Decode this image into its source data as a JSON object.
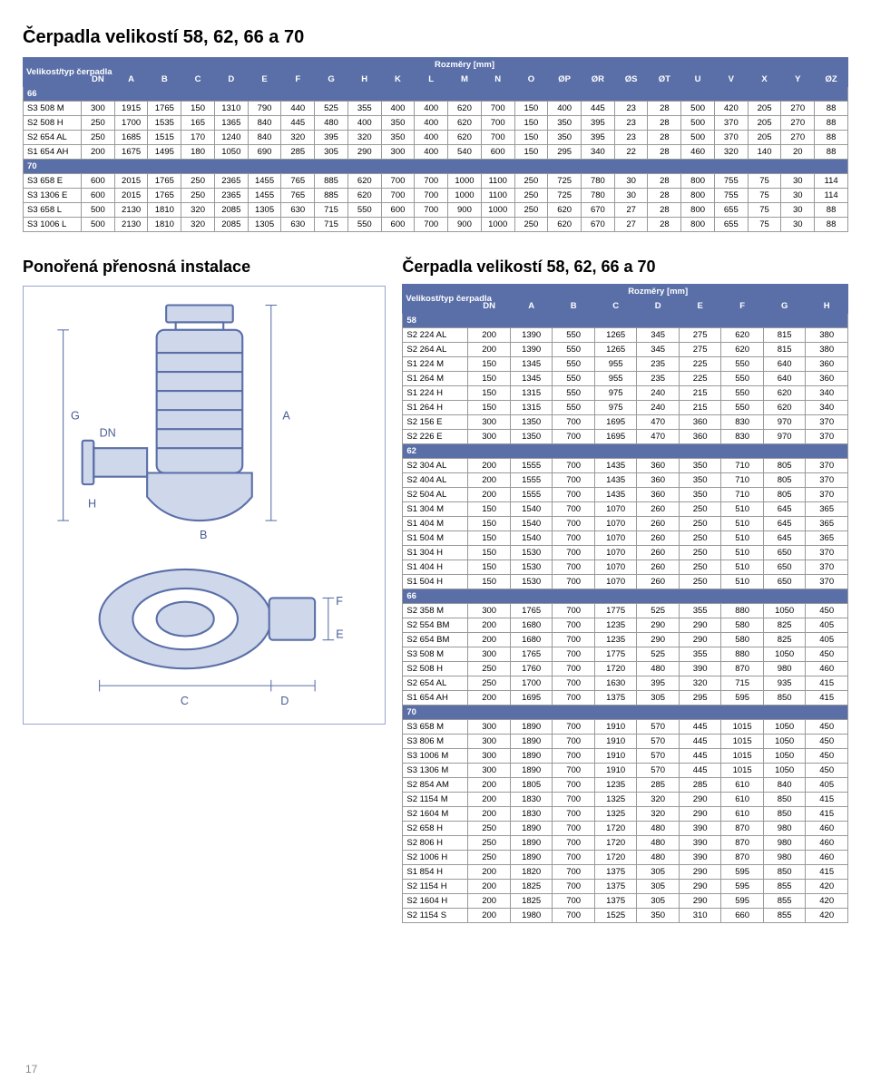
{
  "page_number": "17",
  "title_top": "Čerpadla velikostí 58, 62, 66 a 70",
  "table1": {
    "header_group_left": "Velikost/typ čerpadla",
    "header_group_right": "Rozměry [mm]",
    "cols": [
      "DN",
      "A",
      "B",
      "C",
      "D",
      "E",
      "F",
      "G",
      "H",
      "K",
      "L",
      "M",
      "N",
      "O",
      "ØP",
      "ØR",
      "ØS",
      "ØT",
      "U",
      "V",
      "X",
      "Y",
      "ØZ"
    ],
    "sections": [
      {
        "label": "66",
        "rows": [
          [
            "S3 508 M",
            "300",
            "1915",
            "1765",
            "150",
            "1310",
            "790",
            "440",
            "525",
            "355",
            "400",
            "400",
            "620",
            "700",
            "150",
            "400",
            "445",
            "23",
            "28",
            "500",
            "420",
            "205",
            "270",
            "88"
          ],
          [
            "S2 508 H",
            "250",
            "1700",
            "1535",
            "165",
            "1365",
            "840",
            "445",
            "480",
            "400",
            "350",
            "400",
            "620",
            "700",
            "150",
            "350",
            "395",
            "23",
            "28",
            "500",
            "370",
            "205",
            "270",
            "88"
          ],
          [
            "S2 654 AL",
            "250",
            "1685",
            "1515",
            "170",
            "1240",
            "840",
            "320",
            "395",
            "320",
            "350",
            "400",
            "620",
            "700",
            "150",
            "350",
            "395",
            "23",
            "28",
            "500",
            "370",
            "205",
            "270",
            "88"
          ],
          [
            "S1 654 AH",
            "200",
            "1675",
            "1495",
            "180",
            "1050",
            "690",
            "285",
            "305",
            "290",
            "300",
            "400",
            "540",
            "600",
            "150",
            "295",
            "340",
            "22",
            "28",
            "460",
            "320",
            "140",
            "20",
            "88"
          ]
        ]
      },
      {
        "label": "70",
        "rows": [
          [
            "S3 658 E",
            "600",
            "2015",
            "1765",
            "250",
            "2365",
            "1455",
            "765",
            "885",
            "620",
            "700",
            "700",
            "1000",
            "1100",
            "250",
            "725",
            "780",
            "30",
            "28",
            "800",
            "755",
            "75",
            "30",
            "114"
          ],
          [
            "S3 1306 E",
            "600",
            "2015",
            "1765",
            "250",
            "2365",
            "1455",
            "765",
            "885",
            "620",
            "700",
            "700",
            "1000",
            "1100",
            "250",
            "725",
            "780",
            "30",
            "28",
            "800",
            "755",
            "75",
            "30",
            "114"
          ],
          [
            "S3 658 L",
            "500",
            "2130",
            "1810",
            "320",
            "2085",
            "1305",
            "630",
            "715",
            "550",
            "600",
            "700",
            "900",
            "1000",
            "250",
            "620",
            "670",
            "27",
            "28",
            "800",
            "655",
            "75",
            "30",
            "88"
          ],
          [
            "S3 1006 L",
            "500",
            "2130",
            "1810",
            "320",
            "2085",
            "1305",
            "630",
            "715",
            "550",
            "600",
            "700",
            "900",
            "1000",
            "250",
            "620",
            "670",
            "27",
            "28",
            "800",
            "655",
            "75",
            "30",
            "88"
          ]
        ]
      }
    ]
  },
  "subtitle_left": "Ponořená přenosná instalace",
  "subtitle_right": "Čerpadla velikostí 58, 62, 66 a 70",
  "table2": {
    "header_group_left": "Velikost/typ čerpadla",
    "header_group_right": "Rozměry [mm]",
    "cols": [
      "DN",
      "A",
      "B",
      "C",
      "D",
      "E",
      "F",
      "G",
      "H"
    ],
    "sections": [
      {
        "label": "58",
        "rows": [
          [
            "S2 224 AL",
            "200",
            "1390",
            "550",
            "1265",
            "345",
            "275",
            "620",
            "815",
            "380"
          ],
          [
            "S2 264 AL",
            "200",
            "1390",
            "550",
            "1265",
            "345",
            "275",
            "620",
            "815",
            "380"
          ],
          [
            "S1 224 M",
            "150",
            "1345",
            "550",
            "955",
            "235",
            "225",
            "550",
            "640",
            "360"
          ],
          [
            "S1 264 M",
            "150",
            "1345",
            "550",
            "955",
            "235",
            "225",
            "550",
            "640",
            "360"
          ],
          [
            "S1 224 H",
            "150",
            "1315",
            "550",
            "975",
            "240",
            "215",
            "550",
            "620",
            "340"
          ],
          [
            "S1 264 H",
            "150",
            "1315",
            "550",
            "975",
            "240",
            "215",
            "550",
            "620",
            "340"
          ],
          [
            "S2 156 E",
            "300",
            "1350",
            "700",
            "1695",
            "470",
            "360",
            "830",
            "970",
            "370"
          ],
          [
            "S2 226 E",
            "300",
            "1350",
            "700",
            "1695",
            "470",
            "360",
            "830",
            "970",
            "370"
          ]
        ]
      },
      {
        "label": "62",
        "rows": [
          [
            "S2 304 AL",
            "200",
            "1555",
            "700",
            "1435",
            "360",
            "350",
            "710",
            "805",
            "370"
          ],
          [
            "S2 404 AL",
            "200",
            "1555",
            "700",
            "1435",
            "360",
            "350",
            "710",
            "805",
            "370"
          ],
          [
            "S2 504 AL",
            "200",
            "1555",
            "700",
            "1435",
            "360",
            "350",
            "710",
            "805",
            "370"
          ],
          [
            "S1 304 M",
            "150",
            "1540",
            "700",
            "1070",
            "260",
            "250",
            "510",
            "645",
            "365"
          ],
          [
            "S1 404 M",
            "150",
            "1540",
            "700",
            "1070",
            "260",
            "250",
            "510",
            "645",
            "365"
          ],
          [
            "S1 504 M",
            "150",
            "1540",
            "700",
            "1070",
            "260",
            "250",
            "510",
            "645",
            "365"
          ],
          [
            "S1 304 H",
            "150",
            "1530",
            "700",
            "1070",
            "260",
            "250",
            "510",
            "650",
            "370"
          ],
          [
            "S1 404 H",
            "150",
            "1530",
            "700",
            "1070",
            "260",
            "250",
            "510",
            "650",
            "370"
          ],
          [
            "S1 504 H",
            "150",
            "1530",
            "700",
            "1070",
            "260",
            "250",
            "510",
            "650",
            "370"
          ]
        ]
      },
      {
        "label": "66",
        "rows": [
          [
            "S2 358 M",
            "300",
            "1765",
            "700",
            "1775",
            "525",
            "355",
            "880",
            "1050",
            "450"
          ],
          [
            "S2 554 BM",
            "200",
            "1680",
            "700",
            "1235",
            "290",
            "290",
            "580",
            "825",
            "405"
          ],
          [
            "S2 654 BM",
            "200",
            "1680",
            "700",
            "1235",
            "290",
            "290",
            "580",
            "825",
            "405"
          ],
          [
            "S3 508 M",
            "300",
            "1765",
            "700",
            "1775",
            "525",
            "355",
            "880",
            "1050",
            "450"
          ],
          [
            "S2 508 H",
            "250",
            "1760",
            "700",
            "1720",
            "480",
            "390",
            "870",
            "980",
            "460"
          ],
          [
            "S2 654 AL",
            "250",
            "1700",
            "700",
            "1630",
            "395",
            "320",
            "715",
            "935",
            "415"
          ],
          [
            "S1 654 AH",
            "200",
            "1695",
            "700",
            "1375",
            "305",
            "295",
            "595",
            "850",
            "415"
          ]
        ]
      },
      {
        "label": "70",
        "rows": [
          [
            "S3 658 M",
            "300",
            "1890",
            "700",
            "1910",
            "570",
            "445",
            "1015",
            "1050",
            "450"
          ],
          [
            "S3 806 M",
            "300",
            "1890",
            "700",
            "1910",
            "570",
            "445",
            "1015",
            "1050",
            "450"
          ],
          [
            "S3 1006 M",
            "300",
            "1890",
            "700",
            "1910",
            "570",
            "445",
            "1015",
            "1050",
            "450"
          ],
          [
            "S3 1306 M",
            "300",
            "1890",
            "700",
            "1910",
            "570",
            "445",
            "1015",
            "1050",
            "450"
          ],
          [
            "S2 854 AM",
            "200",
            "1805",
            "700",
            "1235",
            "285",
            "285",
            "610",
            "840",
            "405"
          ],
          [
            "S2 1154 M",
            "200",
            "1830",
            "700",
            "1325",
            "320",
            "290",
            "610",
            "850",
            "415"
          ],
          [
            "S2 1604 M",
            "200",
            "1830",
            "700",
            "1325",
            "320",
            "290",
            "610",
            "850",
            "415"
          ],
          [
            "S2 658 H",
            "250",
            "1890",
            "700",
            "1720",
            "480",
            "390",
            "870",
            "980",
            "460"
          ],
          [
            "S2 806 H",
            "250",
            "1890",
            "700",
            "1720",
            "480",
            "390",
            "870",
            "980",
            "460"
          ],
          [
            "S2 1006 H",
            "250",
            "1890",
            "700",
            "1720",
            "480",
            "390",
            "870",
            "980",
            "460"
          ],
          [
            "S1 854 H",
            "200",
            "1820",
            "700",
            "1375",
            "305",
            "290",
            "595",
            "850",
            "415"
          ],
          [
            "S2 1154 H",
            "200",
            "1825",
            "700",
            "1375",
            "305",
            "290",
            "595",
            "855",
            "420"
          ],
          [
            "S2 1604 H",
            "200",
            "1825",
            "700",
            "1375",
            "305",
            "290",
            "595",
            "855",
            "420"
          ],
          [
            "S2 1154 S",
            "200",
            "1980",
            "700",
            "1525",
            "350",
            "310",
            "660",
            "855",
            "420"
          ]
        ]
      }
    ]
  },
  "diagram_labels": {
    "DN": "DN",
    "A": "A",
    "B": "B",
    "C": "C",
    "D": "D",
    "E": "E",
    "F": "F",
    "G": "G",
    "H": "H"
  },
  "colors": {
    "header_bg": "#5a6fa8",
    "header_fg": "#ffffff",
    "border": "#999999",
    "diagram_stroke": "#5a6fa8"
  }
}
